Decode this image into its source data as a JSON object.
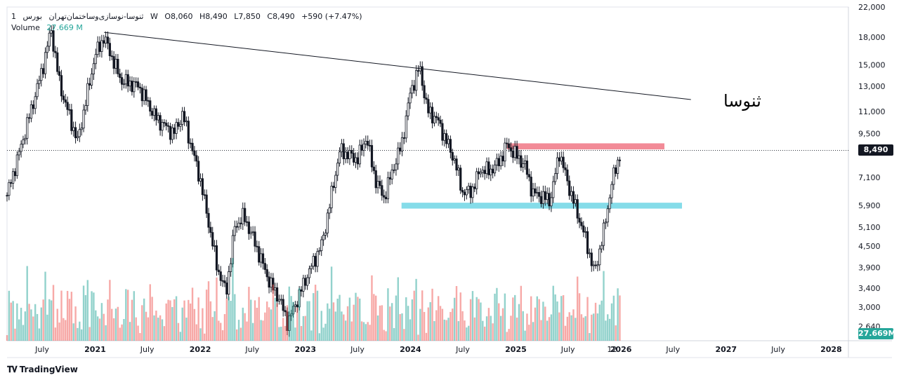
{
  "legend": {
    "interval": "1",
    "symbol": "ثنوسا-نوسازی‌وساختمان‌تهران",
    "exchange": "بورس",
    "timeframe": "W",
    "open": "O8,060",
    "high": "H8,490",
    "low": "L7,850",
    "close": "C8,490",
    "change": "+590 (+7.47%)",
    "volume_label": "Volume",
    "volume_value": "27.669 M"
  },
  "branding": {
    "logo_text": "TradingView"
  },
  "annotation_text": "ثنوسا",
  "price_tags": {
    "last_price": "8,490",
    "last_volume": "27.669M"
  },
  "colors": {
    "up": "#26a69a",
    "down": "#ef5350",
    "candle": "#131722",
    "grid": "#f0f3fa",
    "resistance_zone": "#f28b97",
    "support_zone": "#85dce9"
  },
  "chart_data": {
    "type": "candlestick",
    "y_scale": "log",
    "ylim": [
      2400,
      22000
    ],
    "y_ticks": [
      22000,
      18000,
      15000,
      13000,
      11000,
      9500,
      7100,
      5900,
      5100,
      4500,
      3900,
      3400,
      3000,
      2640
    ],
    "y_tick_labels": [
      "22,000",
      "18,000",
      "15,000",
      "13,000",
      "11,000",
      "9,500",
      "7,100",
      "5,900",
      "5,100",
      "4,500",
      "3,900",
      "3,400",
      "3,000",
      "2,640"
    ],
    "x_ticks": [
      {
        "label": "July",
        "date": "2020-07"
      },
      {
        "label": "2021",
        "date": "2021-01"
      },
      {
        "label": "July",
        "date": "2021-07"
      },
      {
        "label": "2022",
        "date": "2022-01"
      },
      {
        "label": "July",
        "date": "2022-07"
      },
      {
        "label": "2023",
        "date": "2023-01"
      },
      {
        "label": "July",
        "date": "2023-07"
      },
      {
        "label": "2024",
        "date": "2024-01"
      },
      {
        "label": "July",
        "date": "2024-07"
      },
      {
        "label": "2025",
        "date": "2025-01"
      },
      {
        "label": "July",
        "date": "2025-07"
      },
      {
        "label": "12",
        "date": "2025-12"
      },
      {
        "label": "2026",
        "date": "2026-01"
      },
      {
        "label": "July",
        "date": "2026-07"
      },
      {
        "label": "2027",
        "date": "2027-01"
      },
      {
        "label": "July",
        "date": "2027-07"
      },
      {
        "label": "2028",
        "date": "2028-01"
      }
    ],
    "price_path": [
      {
        "date": "2020-03",
        "price": 6300
      },
      {
        "date": "2020-05",
        "price": 9500
      },
      {
        "date": "2020-07",
        "price": 14500
      },
      {
        "date": "2020-08",
        "price": 19000
      },
      {
        "date": "2020-09",
        "price": 13000
      },
      {
        "date": "2020-11",
        "price": 9000
      },
      {
        "date": "2021-01",
        "price": 16000
      },
      {
        "date": "2021-02",
        "price": 18000
      },
      {
        "date": "2021-04",
        "price": 13500
      },
      {
        "date": "2021-06",
        "price": 13000
      },
      {
        "date": "2021-08",
        "price": 10500
      },
      {
        "date": "2021-10",
        "price": 9500
      },
      {
        "date": "2021-11",
        "price": 10800
      },
      {
        "date": "2022-01",
        "price": 7000
      },
      {
        "date": "2022-03",
        "price": 3900
      },
      {
        "date": "2022-04",
        "price": 3300
      },
      {
        "date": "2022-05",
        "price": 5100
      },
      {
        "date": "2022-06",
        "price": 5500
      },
      {
        "date": "2022-07",
        "price": 4800
      },
      {
        "date": "2022-09",
        "price": 3500
      },
      {
        "date": "2022-10",
        "price": 3200
      },
      {
        "date": "2022-11",
        "price": 2700
      },
      {
        "date": "2023-01",
        "price": 3600
      },
      {
        "date": "2023-03",
        "price": 4600
      },
      {
        "date": "2023-05",
        "price": 8500
      },
      {
        "date": "2023-07",
        "price": 8000
      },
      {
        "date": "2023-08",
        "price": 9300
      },
      {
        "date": "2023-09",
        "price": 7000
      },
      {
        "date": "2023-10",
        "price": 6200
      },
      {
        "date": "2023-11",
        "price": 7500
      },
      {
        "date": "2023-12",
        "price": 8800
      },
      {
        "date": "2024-01",
        "price": 12500
      },
      {
        "date": "2024-02",
        "price": 14800
      },
      {
        "date": "2024-03",
        "price": 11000
      },
      {
        "date": "2024-04",
        "price": 10500
      },
      {
        "date": "2024-06",
        "price": 8000
      },
      {
        "date": "2024-07",
        "price": 6400
      },
      {
        "date": "2024-08",
        "price": 6500
      },
      {
        "date": "2024-09",
        "price": 7500
      },
      {
        "date": "2024-10",
        "price": 7400
      },
      {
        "date": "2024-11",
        "price": 7800
      },
      {
        "date": "2024-12",
        "price": 8800
      },
      {
        "date": "2025-02",
        "price": 7700
      },
      {
        "date": "2025-03",
        "price": 6400
      },
      {
        "date": "2025-05",
        "price": 6100
      },
      {
        "date": "2025-06",
        "price": 8400
      },
      {
        "date": "2025-07",
        "price": 6800
      },
      {
        "date": "2025-09",
        "price": 4700
      },
      {
        "date": "2025-10",
        "price": 3750
      },
      {
        "date": "2025-11",
        "price": 4900
      },
      {
        "date": "2025-12",
        "price": 6900
      },
      {
        "date": "2026-01",
        "price": 8490
      }
    ],
    "trendline": {
      "from": {
        "date": "2021-02",
        "price": 18600
      },
      "to": {
        "date": "2026-09",
        "price": 11900
      }
    },
    "zones": [
      {
        "name": "resistance",
        "from": "2024-12",
        "to": "2026-06",
        "y_low": 8550,
        "y_high": 8900
      },
      {
        "name": "support",
        "from": "2023-12",
        "to": "2026-08",
        "y_low": 5770,
        "y_high": 6000
      }
    ],
    "last_price": 8490,
    "volume_last": "27.669M"
  }
}
